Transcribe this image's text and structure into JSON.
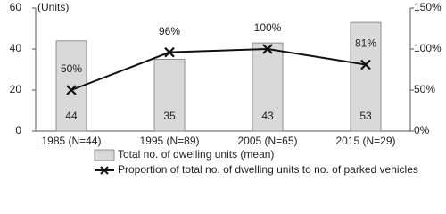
{
  "chart_data": {
    "type": "bar-line",
    "unit_label": "(Units)",
    "categories": [
      "1985 (N=44)",
      "1995 (N=89)",
      "2005 (N=65)",
      "2015 (N=29)"
    ],
    "series": [
      {
        "name": "Total no. of dwelling units (mean)",
        "type": "bar",
        "color": "#d9d9d9",
        "values": [
          44,
          35,
          43,
          53
        ]
      },
      {
        "name": "Proportion of total no. of dwelling units to no. of parked vehicles",
        "type": "line",
        "axis": "y2",
        "color": "#111111",
        "values": [
          50,
          96,
          100,
          81
        ],
        "value_labels": [
          "50%",
          "96%",
          "100%",
          "81%"
        ]
      }
    ],
    "ylim": [
      0,
      60
    ],
    "yticks": [
      0,
      20,
      40,
      60
    ],
    "y2lim": [
      0,
      150
    ],
    "y2ticks": [
      {
        "value": 0,
        "label": "0%"
      },
      {
        "value": 50,
        "label": "50%"
      },
      {
        "value": 100,
        "label": "100%"
      },
      {
        "value": 150,
        "label": "150%"
      }
    ],
    "grid": false
  }
}
